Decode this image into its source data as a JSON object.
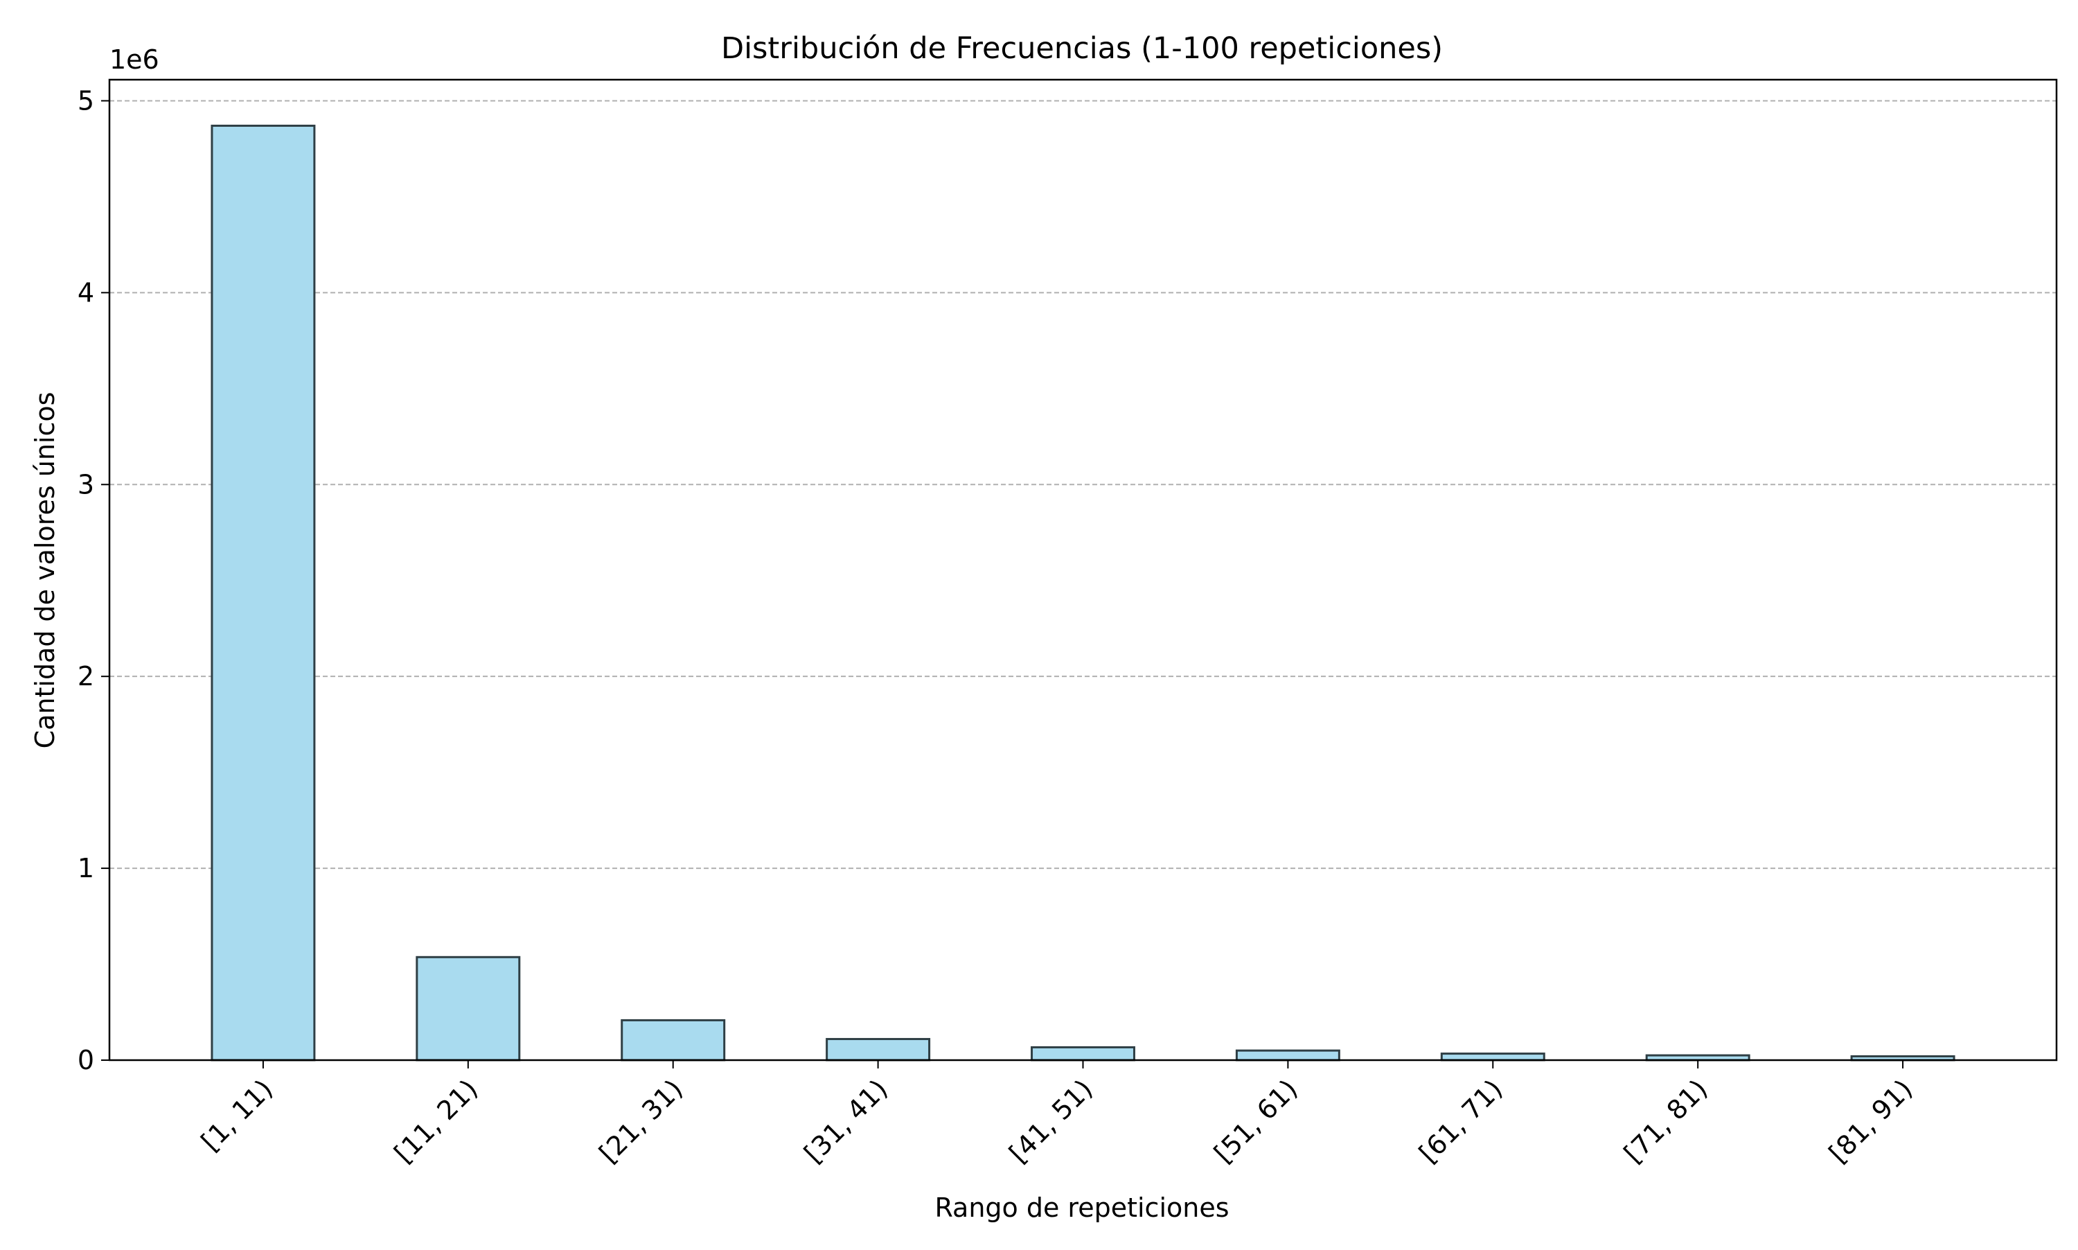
{
  "chart_data": {
    "type": "bar",
    "title": "Distribución de Frecuencias (1-100 repeticiones)",
    "xlabel": "Rango de repeticiones",
    "ylabel": "Cantidad de valores únicos",
    "y_offset_label": "1e6",
    "categories": [
      "[1, 11)",
      "[11, 21)",
      "[21, 31)",
      "[31, 41)",
      "[41, 51)",
      "[51, 61)",
      "[61, 71)",
      "[71, 81)",
      "[81, 91)"
    ],
    "values": [
      4870000,
      537000,
      208000,
      110000,
      67000,
      50000,
      34000,
      25000,
      20000
    ],
    "ylim": [
      0,
      5110000
    ],
    "y_ticks": [
      0,
      1000000,
      2000000,
      3000000,
      4000000,
      5000000
    ],
    "y_tick_labels": [
      "0",
      "1",
      "2",
      "3",
      "4",
      "5"
    ],
    "grid": "y-dashed",
    "legend": "none",
    "colors": {
      "bar_fill": "#a9dbef",
      "bar_edge": "#2f3f45",
      "grid": "#b0b0b0",
      "axis": "#000000"
    }
  }
}
